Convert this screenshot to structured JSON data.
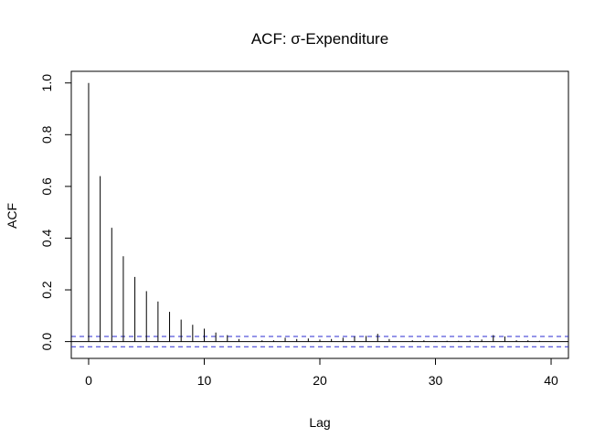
{
  "chart_data": {
    "type": "bar",
    "title": "ACF: σ-Expenditure",
    "xlabel": "Lag",
    "ylabel": "ACF",
    "xlim": [
      -1.5,
      41.5
    ],
    "ylim": [
      -0.065,
      1.045
    ],
    "xticks": [
      0,
      10,
      20,
      30,
      40
    ],
    "yticks": [
      0.0,
      0.2,
      0.4,
      0.6,
      0.8,
      1.0
    ],
    "ytick_labels": [
      "0.0",
      "0.2",
      "0.4",
      "0.6",
      "0.8",
      "1.0"
    ],
    "confidence_bound": 0.02,
    "grid": false,
    "lags": [
      0,
      1,
      2,
      3,
      4,
      5,
      6,
      7,
      8,
      9,
      10,
      11,
      12,
      13,
      14,
      15,
      16,
      17,
      18,
      19,
      20,
      21,
      22,
      23,
      24,
      25,
      26,
      27,
      28,
      29,
      30,
      31,
      32,
      33,
      34,
      35,
      36,
      37,
      38,
      39,
      40
    ],
    "acf": [
      1.0,
      0.64,
      0.44,
      0.33,
      0.25,
      0.195,
      0.155,
      0.115,
      0.085,
      0.065,
      0.05,
      0.035,
      0.025,
      0.01,
      0.0,
      0.005,
      0.005,
      0.015,
      0.01,
      0.012,
      0.008,
      0.01,
      0.015,
      0.02,
      0.022,
      0.03,
      0.01,
      0.0,
      0.005,
      0.005,
      0.002,
      0.003,
      0.003,
      0.005,
      0.008,
      0.025,
      0.02,
      0.005,
      0.005,
      0.003,
      0.002
    ]
  },
  "colors": {
    "bars": "#000000",
    "bounds": "#2b2bd1",
    "axes": "#000000"
  }
}
